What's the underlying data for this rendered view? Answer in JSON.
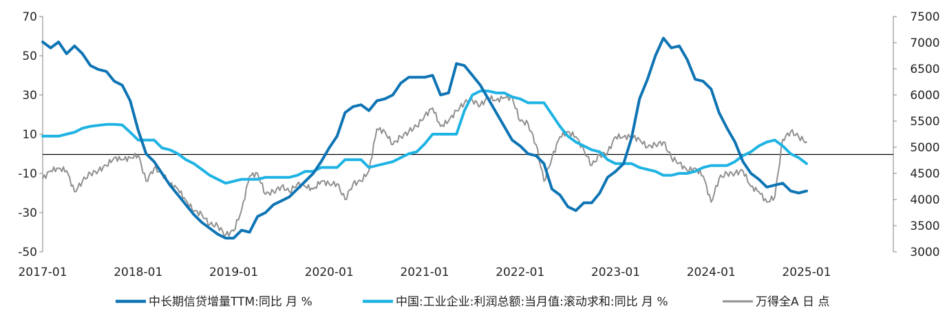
{
  "colors": {
    "series1": "#0e74b4",
    "series2": "#1fb3e3",
    "series3": "#8f8f8f",
    "axis": "#808080",
    "zero": "#000000"
  },
  "chart_data": {
    "type": "line",
    "grid": false,
    "legend_position": "bottom",
    "x_ticks": [
      "2017-01",
      "2018-01",
      "2019-01",
      "2020-01",
      "2021-01",
      "2022-01",
      "2023-01",
      "2024-01",
      "2025-01"
    ],
    "y_left_ticks": [
      "70",
      "50",
      "30",
      "10",
      "-10",
      "-30",
      "-50"
    ],
    "y_right_ticks": [
      "7500",
      "7000",
      "6500",
      "6000",
      "5500",
      "5000",
      "4500",
      "4000",
      "3500",
      "3000"
    ],
    "y_left_range": [
      -50,
      70
    ],
    "y_right_range": [
      3000,
      7500
    ],
    "series": [
      {
        "name": "中长期信贷增量TTM:同比 月 %",
        "axis": "left",
        "points": [
          [
            "2017-01",
            57
          ],
          [
            "2017-02",
            54
          ],
          [
            "2017-03",
            57
          ],
          [
            "2017-04",
            51
          ],
          [
            "2017-05",
            55
          ],
          [
            "2017-06",
            51
          ],
          [
            "2017-07",
            45
          ],
          [
            "2017-08",
            43
          ],
          [
            "2017-09",
            42
          ],
          [
            "2017-10",
            37
          ],
          [
            "2017-11",
            35
          ],
          [
            "2017-12",
            27
          ],
          [
            "2018-01",
            12
          ],
          [
            "2018-02",
            0
          ],
          [
            "2018-03",
            -4
          ],
          [
            "2018-04",
            -10
          ],
          [
            "2018-05",
            -16
          ],
          [
            "2018-06",
            -21
          ],
          [
            "2018-07",
            -26
          ],
          [
            "2018-08",
            -31
          ],
          [
            "2018-09",
            -35
          ],
          [
            "2018-10",
            -38
          ],
          [
            "2018-11",
            -41
          ],
          [
            "2018-12",
            -43
          ],
          [
            "2019-01",
            -43
          ],
          [
            "2019-02",
            -39
          ],
          [
            "2019-03",
            -40
          ],
          [
            "2019-04",
            -32
          ],
          [
            "2019-05",
            -30
          ],
          [
            "2019-06",
            -26
          ],
          [
            "2019-07",
            -24
          ],
          [
            "2019-08",
            -22
          ],
          [
            "2019-09",
            -18
          ],
          [
            "2019-10",
            -14
          ],
          [
            "2019-11",
            -10
          ],
          [
            "2019-12",
            -4
          ],
          [
            "2020-01",
            3
          ],
          [
            "2020-02",
            9
          ],
          [
            "2020-03",
            21
          ],
          [
            "2020-04",
            24
          ],
          [
            "2020-05",
            25
          ],
          [
            "2020-06",
            22
          ],
          [
            "2020-07",
            27
          ],
          [
            "2020-08",
            28
          ],
          [
            "2020-09",
            30
          ],
          [
            "2020-10",
            36
          ],
          [
            "2020-11",
            39
          ],
          [
            "2020-12",
            39
          ],
          [
            "2021-01",
            39
          ],
          [
            "2021-02",
            40
          ],
          [
            "2021-03",
            30
          ],
          [
            "2021-04",
            31
          ],
          [
            "2021-05",
            46
          ],
          [
            "2021-06",
            45
          ],
          [
            "2021-07",
            40
          ],
          [
            "2021-08",
            35
          ],
          [
            "2021-09",
            28
          ],
          [
            "2021-10",
            21
          ],
          [
            "2021-11",
            14
          ],
          [
            "2021-12",
            7
          ],
          [
            "2022-01",
            4
          ],
          [
            "2022-02",
            0
          ],
          [
            "2022-03",
            -1
          ],
          [
            "2022-04",
            -5
          ],
          [
            "2022-05",
            -18
          ],
          [
            "2022-06",
            -21
          ],
          [
            "2022-07",
            -27
          ],
          [
            "2022-08",
            -29
          ],
          [
            "2022-09",
            -25
          ],
          [
            "2022-10",
            -25
          ],
          [
            "2022-11",
            -20
          ],
          [
            "2022-12",
            -12
          ],
          [
            "2023-01",
            -9
          ],
          [
            "2023-02",
            -5
          ],
          [
            "2023-03",
            8
          ],
          [
            "2023-04",
            28
          ],
          [
            "2023-05",
            38
          ],
          [
            "2023-06",
            50
          ],
          [
            "2023-07",
            59
          ],
          [
            "2023-08",
            54
          ],
          [
            "2023-09",
            55
          ],
          [
            "2023-10",
            48
          ],
          [
            "2023-11",
            38
          ],
          [
            "2023-12",
            37
          ],
          [
            "2024-01",
            33
          ],
          [
            "2024-02",
            21
          ],
          [
            "2024-03",
            13
          ],
          [
            "2024-04",
            6
          ],
          [
            "2024-05",
            -4
          ],
          [
            "2024-06",
            -10
          ],
          [
            "2024-07",
            -13
          ],
          [
            "2024-08",
            -17
          ],
          [
            "2024-09",
            -16
          ],
          [
            "2024-10",
            -15
          ],
          [
            "2024-11",
            -19
          ],
          [
            "2024-12",
            -20
          ],
          [
            "2025-01",
            -19
          ]
        ]
      },
      {
        "name": "中国:工业企业:利润总额:当月值:滚动求和:同比 月 %",
        "axis": "left",
        "points": [
          [
            "2017-01",
            9
          ],
          [
            "2017-02",
            9
          ],
          [
            "2017-03",
            9
          ],
          [
            "2017-04",
            10
          ],
          [
            "2017-05",
            11
          ],
          [
            "2017-06",
            13
          ],
          [
            "2017-07",
            14
          ],
          [
            "2017-08",
            14.5
          ],
          [
            "2017-09",
            15
          ],
          [
            "2017-10",
            15
          ],
          [
            "2017-11",
            14.7
          ],
          [
            "2017-12",
            11
          ],
          [
            "2018-01",
            7
          ],
          [
            "2018-02",
            7
          ],
          [
            "2018-03",
            7
          ],
          [
            "2018-04",
            3
          ],
          [
            "2018-05",
            2
          ],
          [
            "2018-06",
            0
          ],
          [
            "2018-07",
            -3
          ],
          [
            "2018-08",
            -5
          ],
          [
            "2018-09",
            -8
          ],
          [
            "2018-10",
            -11
          ],
          [
            "2018-11",
            -13
          ],
          [
            "2018-12",
            -15
          ],
          [
            "2019-01",
            -14
          ],
          [
            "2019-02",
            -13
          ],
          [
            "2019-03",
            -13
          ],
          [
            "2019-04",
            -13
          ],
          [
            "2019-05",
            -12
          ],
          [
            "2019-06",
            -12
          ],
          [
            "2019-07",
            -12
          ],
          [
            "2019-08",
            -12
          ],
          [
            "2019-09",
            -11
          ],
          [
            "2019-10",
            -9
          ],
          [
            "2019-11",
            -9
          ],
          [
            "2019-12",
            -7
          ],
          [
            "2020-01",
            -7
          ],
          [
            "2020-02",
            -7
          ],
          [
            "2020-03",
            -3
          ],
          [
            "2020-04",
            -3
          ],
          [
            "2020-05",
            -3
          ],
          [
            "2020-06",
            -7
          ],
          [
            "2020-07",
            -6
          ],
          [
            "2020-08",
            -5
          ],
          [
            "2020-09",
            -4
          ],
          [
            "2020-10",
            -2
          ],
          [
            "2020-11",
            0
          ],
          [
            "2020-12",
            1
          ],
          [
            "2021-01",
            5
          ],
          [
            "2021-02",
            10
          ],
          [
            "2021-03",
            10
          ],
          [
            "2021-04",
            10
          ],
          [
            "2021-05",
            10
          ],
          [
            "2021-06",
            22
          ],
          [
            "2021-07",
            30
          ],
          [
            "2021-08",
            32
          ],
          [
            "2021-09",
            32
          ],
          [
            "2021-10",
            31
          ],
          [
            "2021-11",
            31
          ],
          [
            "2021-12",
            29
          ],
          [
            "2022-01",
            28
          ],
          [
            "2022-02",
            26
          ],
          [
            "2022-03",
            26
          ],
          [
            "2022-04",
            26
          ],
          [
            "2022-05",
            20
          ],
          [
            "2022-06",
            14
          ],
          [
            "2022-07",
            9
          ],
          [
            "2022-08",
            6
          ],
          [
            "2022-09",
            4
          ],
          [
            "2022-10",
            2
          ],
          [
            "2022-11",
            1
          ],
          [
            "2022-12",
            -3
          ],
          [
            "2023-01",
            -5
          ],
          [
            "2023-02",
            -5
          ],
          [
            "2023-03",
            -5
          ],
          [
            "2023-04",
            -7
          ],
          [
            "2023-05",
            -8
          ],
          [
            "2023-06",
            -9
          ],
          [
            "2023-07",
            -11
          ],
          [
            "2023-08",
            -11
          ],
          [
            "2023-09",
            -10
          ],
          [
            "2023-10",
            -10
          ],
          [
            "2023-11",
            -9
          ],
          [
            "2023-12",
            -7
          ],
          [
            "2024-01",
            -6
          ],
          [
            "2024-02",
            -6
          ],
          [
            "2024-03",
            -6
          ],
          [
            "2024-04",
            -4
          ],
          [
            "2024-05",
            -1
          ],
          [
            "2024-06",
            1
          ],
          [
            "2024-07",
            4
          ],
          [
            "2024-08",
            6
          ],
          [
            "2024-09",
            7
          ],
          [
            "2024-10",
            4
          ],
          [
            "2024-11",
            0
          ],
          [
            "2024-12",
            -2
          ],
          [
            "2025-01",
            -5
          ]
        ]
      },
      {
        "name": "万得全A 日 点",
        "axis": "right",
        "points": [
          [
            "2017-01",
            4400
          ],
          [
            "2017-02",
            4550
          ],
          [
            "2017-03",
            4600
          ],
          [
            "2017-04",
            4550
          ],
          [
            "2017-05",
            4150
          ],
          [
            "2017-06",
            4350
          ],
          [
            "2017-07",
            4500
          ],
          [
            "2017-08",
            4550
          ],
          [
            "2017-09",
            4650
          ],
          [
            "2017-10",
            4800
          ],
          [
            "2017-11",
            4760
          ],
          [
            "2017-12",
            4800
          ],
          [
            "2018-01",
            4850
          ],
          [
            "2018-02",
            4350
          ],
          [
            "2018-03",
            4600
          ],
          [
            "2018-04",
            4500
          ],
          [
            "2018-05",
            4300
          ],
          [
            "2018-06",
            4200
          ],
          [
            "2018-07",
            3980
          ],
          [
            "2018-08",
            3780
          ],
          [
            "2018-09",
            3720
          ],
          [
            "2018-10",
            3520
          ],
          [
            "2018-11",
            3500
          ],
          [
            "2018-12",
            3320
          ],
          [
            "2019-01",
            3400
          ],
          [
            "2019-02",
            3800
          ],
          [
            "2019-03",
            4450
          ],
          [
            "2019-04",
            4500
          ],
          [
            "2019-05",
            4100
          ],
          [
            "2019-06",
            4150
          ],
          [
            "2019-07",
            4250
          ],
          [
            "2019-08",
            4150
          ],
          [
            "2019-09",
            4300
          ],
          [
            "2019-10",
            4250
          ],
          [
            "2019-11",
            4200
          ],
          [
            "2019-12",
            4350
          ],
          [
            "2020-01",
            4300
          ],
          [
            "2020-02",
            4300
          ],
          [
            "2020-03",
            4000
          ],
          [
            "2020-04",
            4300
          ],
          [
            "2020-05",
            4350
          ],
          [
            "2020-06",
            4550
          ],
          [
            "2020-07",
            5350
          ],
          [
            "2020-08",
            5300
          ],
          [
            "2020-09",
            5050
          ],
          [
            "2020-10",
            5200
          ],
          [
            "2020-11",
            5300
          ],
          [
            "2020-12",
            5400
          ],
          [
            "2021-01",
            5600
          ],
          [
            "2021-02",
            5750
          ],
          [
            "2021-03",
            5400
          ],
          [
            "2021-04",
            5500
          ],
          [
            "2021-05",
            5700
          ],
          [
            "2021-06",
            5850
          ],
          [
            "2021-07",
            5900
          ],
          [
            "2021-08",
            5800
          ],
          [
            "2021-09",
            5950
          ],
          [
            "2021-10",
            5900
          ],
          [
            "2021-11",
            5950
          ],
          [
            "2021-12",
            5950
          ],
          [
            "2022-01",
            5500
          ],
          [
            "2022-02",
            5450
          ],
          [
            "2022-03",
            5050
          ],
          [
            "2022-04",
            4350
          ],
          [
            "2022-05",
            4800
          ],
          [
            "2022-06",
            5200
          ],
          [
            "2022-07",
            5300
          ],
          [
            "2022-08",
            5200
          ],
          [
            "2022-09",
            4950
          ],
          [
            "2022-10",
            4650
          ],
          [
            "2022-11",
            4850
          ],
          [
            "2022-12",
            4900
          ],
          [
            "2023-01",
            5200
          ],
          [
            "2023-02",
            5200
          ],
          [
            "2023-03",
            5200
          ],
          [
            "2023-04",
            5150
          ],
          [
            "2023-05",
            5000
          ],
          [
            "2023-06",
            5050
          ],
          [
            "2023-07",
            5100
          ],
          [
            "2023-08",
            4800
          ],
          [
            "2023-09",
            4700
          ],
          [
            "2023-10",
            4550
          ],
          [
            "2023-11",
            4600
          ],
          [
            "2023-12",
            4450
          ],
          [
            "2024-01",
            3950
          ],
          [
            "2024-02",
            4400
          ],
          [
            "2024-03",
            4500
          ],
          [
            "2024-04",
            4500
          ],
          [
            "2024-05",
            4550
          ],
          [
            "2024-06",
            4250
          ],
          [
            "2024-07",
            4150
          ],
          [
            "2024-08",
            3950
          ],
          [
            "2024-09",
            4050
          ],
          [
            "2024-10",
            5150
          ],
          [
            "2024-11",
            5300
          ],
          [
            "2024-12",
            5200
          ],
          [
            "2025-01",
            5100
          ]
        ]
      }
    ]
  }
}
